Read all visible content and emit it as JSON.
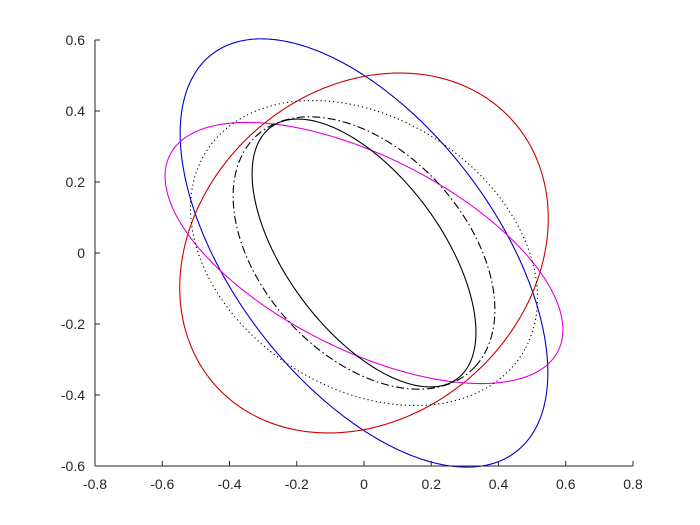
{
  "chart_data": {
    "type": "line",
    "title": "",
    "xlabel": "",
    "ylabel": "",
    "xlim": [
      -0.8,
      0.8
    ],
    "ylim": [
      -0.6,
      0.6
    ],
    "grid": false,
    "box": false,
    "xticks": [
      -0.8,
      -0.6,
      -0.4,
      -0.2,
      0,
      0.2,
      0.4,
      0.6,
      0.8
    ],
    "xtick_labels": [
      "-0.8",
      "-0.6",
      "-0.4",
      "-0.2",
      "0",
      "0.2",
      "0.4",
      "0.6",
      "0.8"
    ],
    "yticks": [
      -0.6,
      -0.4,
      -0.2,
      0,
      0.2,
      0.4,
      0.6
    ],
    "ytick_labels": [
      "-0.6",
      "-0.4",
      "-0.2",
      "0",
      "0.2",
      "0.4",
      "0.6"
    ],
    "series": [
      {
        "id": "blue-ellipse",
        "shape": "ellipse",
        "color": "#0000cc",
        "dash": "solid",
        "center": [
          0,
          0
        ],
        "semi_major": 0.72,
        "semi_minor": 0.38,
        "angle_deg": -50
      },
      {
        "id": "red-ellipse",
        "shape": "ellipse",
        "color": "#cc0000",
        "dash": "solid",
        "center": [
          0,
          0
        ],
        "semi_major": 0.58,
        "semi_minor": 0.47,
        "angle_deg": 34
      },
      {
        "id": "magenta-ellipse",
        "shape": "ellipse",
        "color": "#e000e0",
        "dash": "solid",
        "center": [
          0,
          0
        ],
        "semi_major": 0.64,
        "semi_minor": 0.275,
        "angle_deg": -25
      },
      {
        "id": "dotted-ellipse",
        "shape": "ellipse",
        "color": "#000000",
        "dash": "dotted",
        "center": [
          0,
          0
        ],
        "semi_major": 0.55,
        "semi_minor": 0.385,
        "angle_deg": -29
      },
      {
        "id": "dashdot-ellipse",
        "shape": "ellipse",
        "color": "#000000",
        "dash": "dashdot",
        "center": [
          0,
          0
        ],
        "semi_major": 0.46,
        "semi_minor": 0.295,
        "angle_deg": -44
      },
      {
        "id": "black-ellipse",
        "shape": "ellipse",
        "color": "#000000",
        "dash": "solid",
        "center": [
          0,
          0
        ],
        "semi_major": 0.45,
        "semi_minor": 0.225,
        "angle_deg": -51
      }
    ]
  }
}
